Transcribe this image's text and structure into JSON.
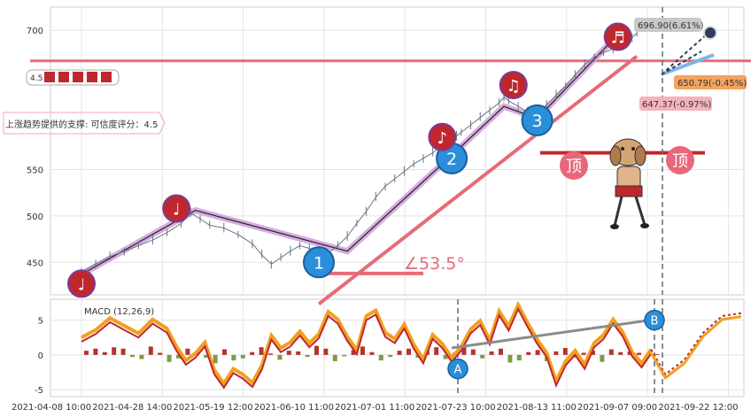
{
  "chart_data": [
    {
      "type": "line",
      "panel": "price",
      "y_ticks": [
        450,
        500,
        550,
        700
      ],
      "ylim": [
        415,
        725
      ],
      "x_ticks": [
        "2021-04-08 10:00",
        "2021-04-28 14:00",
        "2021-05-19 12:00",
        "2021-06-10 11:00",
        "2021-07-01 11:00",
        "2021-07-23 10:00",
        "2021-08-13 11:00",
        "2021-09-07 09:00",
        "2021-09-22 12:00"
      ],
      "price_series": [
        [
          0,
          440
        ],
        [
          3,
          448
        ],
        [
          6,
          456
        ],
        [
          9,
          462
        ],
        [
          12,
          468
        ],
        [
          15,
          474
        ],
        [
          18,
          482
        ],
        [
          21,
          492
        ],
        [
          23,
          503
        ],
        [
          25,
          497
        ],
        [
          27,
          490
        ],
        [
          30,
          487
        ],
        [
          33,
          480
        ],
        [
          36,
          470
        ],
        [
          38,
          458
        ],
        [
          40,
          448
        ],
        [
          42,
          455
        ],
        [
          44,
          462
        ],
        [
          46,
          468
        ],
        [
          48,
          465
        ],
        [
          50,
          462
        ],
        [
          52,
          460
        ],
        [
          54,
          468
        ],
        [
          56,
          478
        ],
        [
          58,
          492
        ],
        [
          60,
          505
        ],
        [
          62,
          520
        ],
        [
          64,
          532
        ],
        [
          66,
          540
        ],
        [
          68,
          548
        ],
        [
          70,
          556
        ],
        [
          72,
          562
        ],
        [
          74,
          568
        ],
        [
          76,
          576
        ],
        [
          78,
          582
        ],
        [
          79,
          586
        ],
        [
          80,
          590
        ],
        [
          82,
          598
        ],
        [
          84,
          606
        ],
        [
          86,
          614
        ],
        [
          88,
          622
        ],
        [
          89,
          628
        ],
        [
          90,
          624
        ],
        [
          92,
          618
        ],
        [
          94,
          612
        ],
        [
          96,
          608
        ],
        [
          98,
          620
        ],
        [
          100,
          630
        ],
        [
          102,
          640
        ],
        [
          104,
          652
        ],
        [
          106,
          663
        ],
        [
          108,
          671
        ],
        [
          110,
          676
        ],
        [
          112,
          680
        ],
        [
          114,
          686
        ],
        [
          116,
          692
        ],
        [
          117,
          697
        ]
      ],
      "wave_points": [
        [
          0,
          437
        ],
        [
          24,
          506
        ],
        [
          56,
          462
        ],
        [
          79,
          570
        ],
        [
          89,
          618
        ],
        [
          96,
          605
        ],
        [
          112,
          690
        ]
      ],
      "support_line": [
        [
          50,
          405
        ],
        [
          117,
          672
        ]
      ],
      "horizontal_line": {
        "value": 667
      },
      "top_line": {
        "value": 568
      },
      "rings": {
        "1": [
          50,
          450
        ],
        "2": [
          78,
          562
        ],
        "3": [
          96,
          603
        ]
      },
      "notes": {
        "n1": [
          0,
          427
        ],
        "n2": [
          20,
          508
        ],
        "n3": [
          76,
          585
        ],
        "n4": [
          91,
          641
        ],
        "n5": [
          113,
          693
        ]
      },
      "markers": {
        "A": 78,
        "B": 121
      },
      "annotations": {
        "support_text": "上涨趋势提供的支撑: 可信度评分：4.5",
        "badge_text": "4.5",
        "angle_text": "∠53.5°",
        "ring_labels": [
          "1",
          "2",
          "3"
        ],
        "note_glyphs": [
          "♩",
          "♩",
          "♪",
          "♫",
          "♬"
        ],
        "top_glyph": "顶",
        "price_tag_up": "696.90(6.61%)",
        "price_tag_mid": "650.79(-0.45%)",
        "price_tag_low": "647.37(-0.97%)",
        "marker_a": "A",
        "marker_b": "B"
      },
      "colors": {
        "trend": "#e86a78",
        "wave": "#cf9ddb",
        "red_note": "#c0272d",
        "ring_blue": "#2a8fd8"
      }
    },
    {
      "type": "line",
      "panel": "macd",
      "title": "MACD (12,26,9)",
      "y_ticks": [
        -5,
        0,
        5
      ],
      "ylim": [
        -6,
        8
      ],
      "dif": [
        [
          0,
          2.5
        ],
        [
          3,
          3.6
        ],
        [
          6,
          5.3
        ],
        [
          9,
          4.2
        ],
        [
          12,
          3.1
        ],
        [
          15,
          5.1
        ],
        [
          18,
          3.8
        ],
        [
          20,
          1.2
        ],
        [
          22,
          -0.8
        ],
        [
          24,
          0.2
        ],
        [
          26,
          1.8
        ],
        [
          28,
          -2.2
        ],
        [
          30,
          -4.1
        ],
        [
          32,
          -2.0
        ],
        [
          34,
          -2.8
        ],
        [
          36,
          -4.0
        ],
        [
          38,
          -1.5
        ],
        [
          40,
          2.8
        ],
        [
          42,
          1.0
        ],
        [
          44,
          1.8
        ],
        [
          46,
          3.4
        ],
        [
          48,
          1.7
        ],
        [
          50,
          3.0
        ],
        [
          52,
          6.2
        ],
        [
          54,
          5.1
        ],
        [
          56,
          2.6
        ],
        [
          58,
          0.7
        ],
        [
          60,
          5.6
        ],
        [
          62,
          6.4
        ],
        [
          64,
          3.2
        ],
        [
          66,
          2.3
        ],
        [
          68,
          4.4
        ],
        [
          70,
          1.5
        ],
        [
          72,
          -0.6
        ],
        [
          74,
          2.9
        ],
        [
          76,
          1.6
        ],
        [
          78,
          -0.4
        ],
        [
          80,
          1.2
        ],
        [
          82,
          3.7
        ],
        [
          84,
          4.9
        ],
        [
          86,
          2.1
        ],
        [
          88,
          6.3
        ],
        [
          90,
          4.1
        ],
        [
          92,
          7.2
        ],
        [
          94,
          4.6
        ],
        [
          96,
          2.2
        ],
        [
          98,
          0.3
        ],
        [
          100,
          -3.8
        ],
        [
          102,
          -0.9
        ],
        [
          104,
          0.6
        ],
        [
          106,
          -1.4
        ],
        [
          108,
          1.7
        ],
        [
          110,
          2.9
        ],
        [
          112,
          5.1
        ],
        [
          114,
          3.3
        ],
        [
          116,
          0.4
        ],
        [
          118,
          -1.2
        ],
        [
          120,
          0.8
        ]
      ],
      "dif_projection": [
        [
          120,
          0.8
        ],
        [
          123,
          -2.8
        ],
        [
          127,
          -0.7
        ],
        [
          131,
          3.2
        ],
        [
          135,
          5.6
        ],
        [
          139,
          6.0
        ]
      ],
      "histogram": [
        0.6,
        0.9,
        0.4,
        1.1,
        0.9,
        -0.3,
        -0.6,
        1.2,
        0.3,
        -1.0,
        -0.5,
        0.9,
        0.5,
        -0.4,
        -1.2,
        0.8,
        -0.8,
        -0.5,
        0.4,
        1.1,
        0.2,
        -0.7,
        0.6,
        0.5,
        -0.3,
        1.3,
        0.9,
        -0.9,
        -0.2,
        0.7,
        1.2,
        0.4,
        -0.8,
        -0.3,
        0.6,
        0.9,
        -0.4,
        0.8,
        1.1,
        -0.6,
        0.3,
        1.2,
        0.8,
        -0.5,
        0.5,
        0.9,
        -1.1,
        -0.8,
        0.4,
        0.7,
        -0.9,
        0.5,
        1.0,
        -0.4,
        0.3,
        0.6,
        -1.0,
        0.8,
        0.4,
        0.5,
        0.3,
        0.2,
        0.1
      ],
      "marker_line": [
        [
          78,
          1.0
        ],
        [
          121,
          5.1
        ]
      ],
      "markers": {
        "A": [
          78,
          -2.0
        ],
        "B": [
          121,
          5.0
        ]
      }
    }
  ]
}
